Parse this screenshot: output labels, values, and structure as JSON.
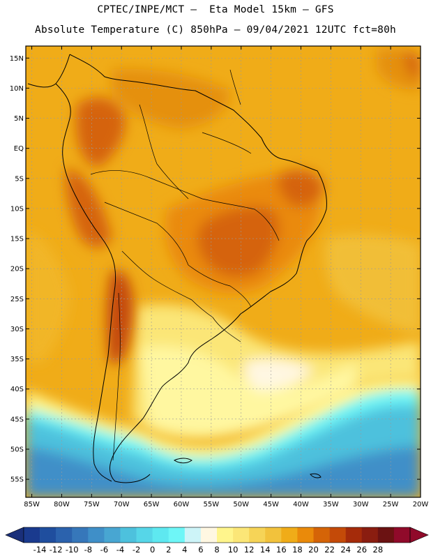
{
  "header": {
    "title_line1": "CPTEC/INPE/MCT —  Eta Model 15km — GFS",
    "title_line2": "Absolute Temperature (C) 850hPa — 09/04/2021 12UTC fct=80h"
  },
  "map": {
    "lat_labels": [
      "15N",
      "10N",
      "5N",
      "EQ",
      "5S",
      "10S",
      "15S",
      "20S",
      "25S",
      "30S",
      "35S",
      "40S",
      "45S",
      "50S",
      "55S"
    ],
    "lat_values": [
      15,
      10,
      5,
      0,
      -5,
      -10,
      -15,
      -20,
      -25,
      -30,
      -35,
      -40,
      -45,
      -50,
      -55
    ],
    "lon_labels": [
      "85W",
      "80W",
      "75W",
      "70W",
      "65W",
      "60W",
      "55W",
      "50W",
      "45W",
      "40W",
      "35W",
      "30W",
      "25W",
      "20W"
    ],
    "lon_values": [
      -85,
      -80,
      -75,
      -70,
      -65,
      -60,
      -55,
      -50,
      -45,
      -40,
      -35,
      -30,
      -25,
      -20
    ],
    "extent": {
      "lon_min": -86,
      "lon_max": -20,
      "lat_min": -58,
      "lat_max": 17
    },
    "colors": {
      "frame": "#000000",
      "grid": "#9a9a9a",
      "coast": "#000000"
    }
  },
  "colorbar": {
    "labels": [
      "-14",
      "-12",
      "-10",
      "-8",
      "-6",
      "-4",
      "-2",
      "0",
      "2",
      "4",
      "6",
      "8",
      "10",
      "12",
      "14",
      "16",
      "18",
      "20",
      "22",
      "24",
      "26",
      "28"
    ],
    "colors": [
      "#1a3a8e",
      "#1f4e9e",
      "#2b62ad",
      "#3677ba",
      "#3f8fc8",
      "#48a6d2",
      "#4dc1dd",
      "#56d6e8",
      "#5ee8f0",
      "#6ef6f7",
      "#cdf4f8",
      "#fff7e2",
      "#fff58c",
      "#fbe677",
      "#f6d457",
      "#f2c23c",
      "#f0ac18",
      "#ea8a0a",
      "#d56407",
      "#c44a08",
      "#a52b0a",
      "#8a1d10",
      "#6b1212",
      "#900a2a"
    ],
    "left_arrow_color": "#1a2f7a",
    "right_arrow_color": "#900a2a"
  }
}
